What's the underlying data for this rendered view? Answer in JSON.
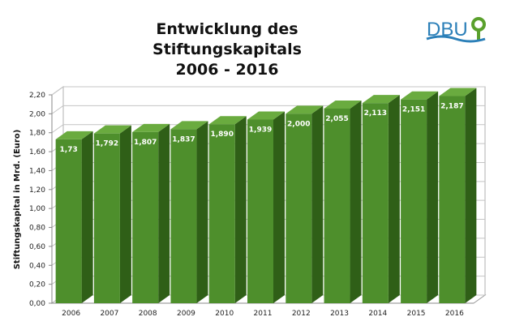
{
  "chart_data": {
    "type": "bar",
    "title": "Entwicklung des Stiftungskapitals",
    "subtitle": "2006 - 2016",
    "xlabel": "",
    "ylabel": "Stiftungskapital in Mrd. (Euro)",
    "ylim": [
      0,
      2.2
    ],
    "yticks": [
      "0,00",
      "0,20",
      "0,40",
      "0,60",
      "0,80",
      "1,00",
      "1,20",
      "1,40",
      "1,60",
      "1,80",
      "2,00",
      "2,20"
    ],
    "categories": [
      "2006",
      "2007",
      "2008",
      "2009",
      "2010",
      "2011",
      "2012",
      "2013",
      "2014",
      "2015",
      "2016"
    ],
    "values": [
      1.73,
      1.792,
      1.807,
      1.837,
      1.89,
      1.939,
      2.0,
      2.055,
      2.113,
      2.151,
      2.187
    ],
    "data_labels": [
      "1,73",
      "1,792",
      "1,807",
      "1,837",
      "1,890",
      "1,939",
      "2,000",
      "2,055",
      "2,113",
      "2,151",
      "2,187"
    ],
    "grid": true,
    "legend": "none",
    "bar_color": "#4e8f2c"
  },
  "logo": {
    "text": "DBU",
    "color": "#2b7fb8",
    "accent": "#5aa02c"
  }
}
